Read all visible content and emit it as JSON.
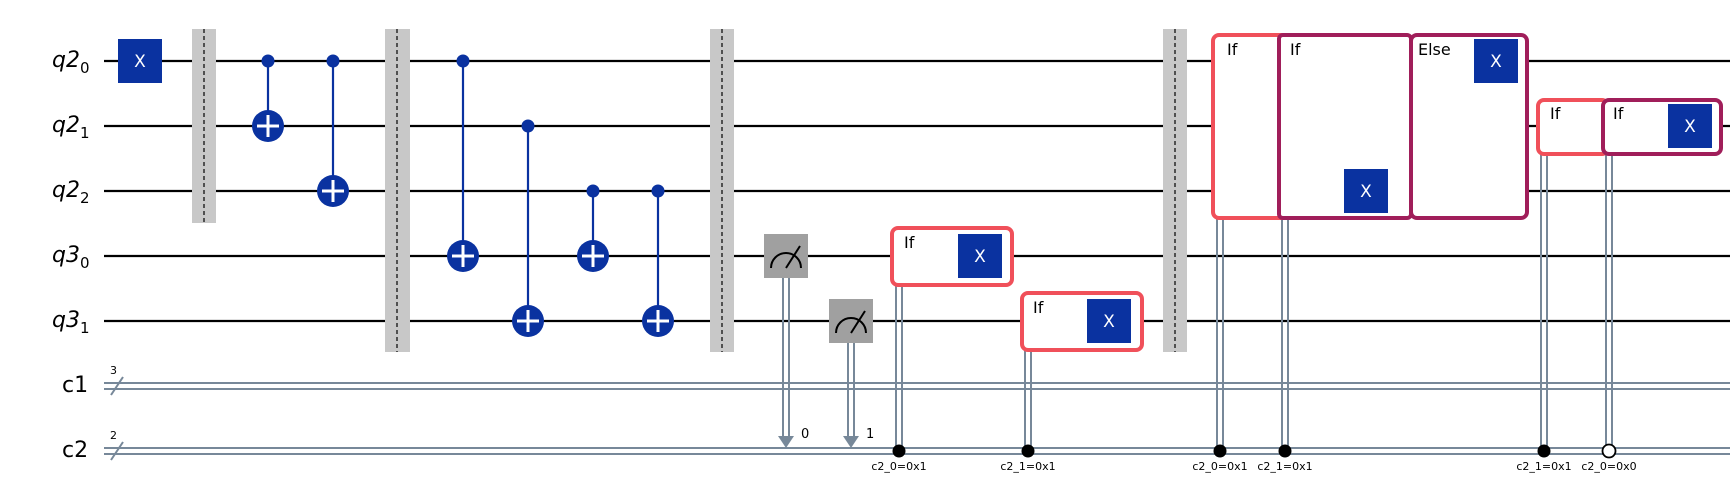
{
  "registers": {
    "q2_0": {
      "base": "q2",
      "sub": "0"
    },
    "q2_1": {
      "base": "q2",
      "sub": "1"
    },
    "q2_2": {
      "base": "q2",
      "sub": "2"
    },
    "q3_0": {
      "base": "q3",
      "sub": "0"
    },
    "q3_1": {
      "base": "q3",
      "sub": "1"
    },
    "c1": {
      "label": "c1",
      "width": "3"
    },
    "c2": {
      "label": "c2",
      "width": "2"
    }
  },
  "gates": {
    "x": "X"
  },
  "measure_bits": [
    "0",
    "1"
  ],
  "if_label": "If",
  "else_label": "Else",
  "conditions": {
    "c2_0_eq_1": "c2_0=0x1",
    "c2_1_eq_1": "c2_1=0x1",
    "c2_0_eq_0": "c2_0=0x0"
  },
  "colors": {
    "gate": "#0a32a0",
    "if_primary": "#f0505a",
    "if_nested": "#a01e5a",
    "classical": "#778899",
    "barrier": "#c8c8c8",
    "measure": "#a0a0a0"
  }
}
